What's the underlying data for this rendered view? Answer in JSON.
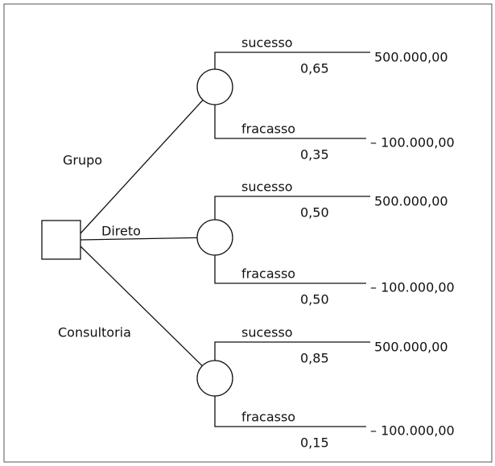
{
  "alternatives": [
    {
      "label": "Grupo",
      "outcomes": [
        {
          "label": "sucesso",
          "probability": "0,65",
          "payoff": "500.000,00"
        },
        {
          "label": "fracasso",
          "probability": "0,35",
          "payoff": "– 100.000,00"
        }
      ]
    },
    {
      "label": "Direto",
      "outcomes": [
        {
          "label": "sucesso",
          "probability": "0,50",
          "payoff": "500.000,00"
        },
        {
          "label": "fracasso",
          "probability": "0,50",
          "payoff": "– 100.000,00"
        }
      ]
    },
    {
      "label": "Consultoria",
      "outcomes": [
        {
          "label": "sucesso",
          "probability": "0,85",
          "payoff": "500.000,00"
        },
        {
          "label": "fracasso",
          "probability": "0,15",
          "payoff": "– 100.000,00"
        }
      ]
    }
  ]
}
